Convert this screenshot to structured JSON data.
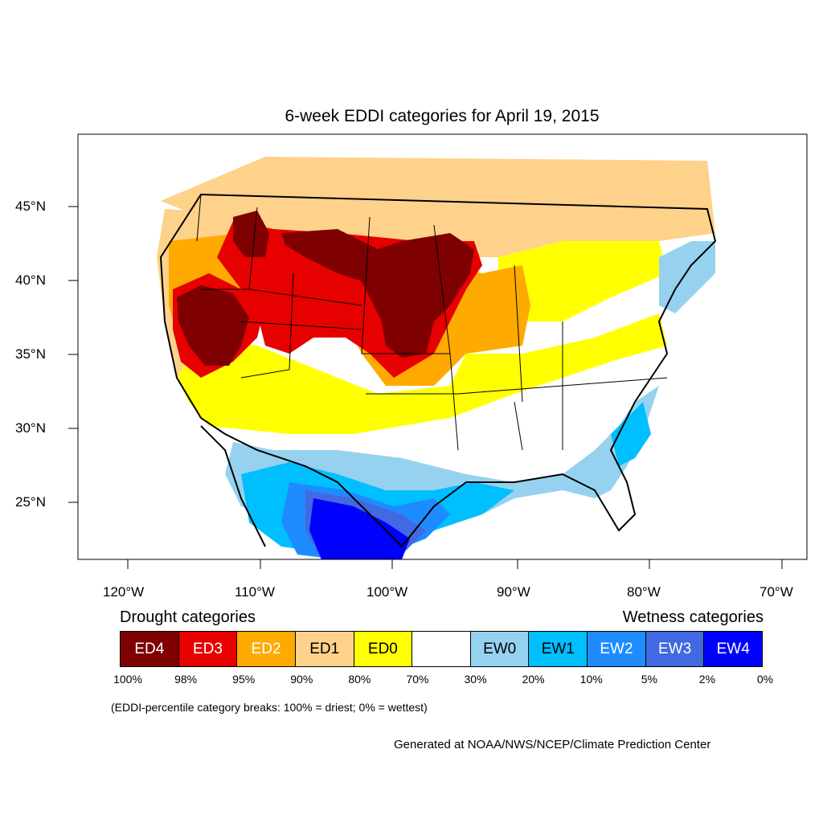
{
  "title": "6-week EDDI categories for April 19, 2015",
  "axes": {
    "lat_labels": [
      "45°N",
      "40°N",
      "35°N",
      "30°N",
      "25°N"
    ],
    "lon_labels": [
      "120°W",
      "110°W",
      "100°W",
      "90°W",
      "80°W",
      "70°W"
    ]
  },
  "legend": {
    "drought_title": "Drought categories",
    "wetness_title": "Wetness categories",
    "categories": [
      {
        "label": "ED4",
        "color": "#7f0000",
        "text_color": "#ffffff"
      },
      {
        "label": "ED3",
        "color": "#e60000",
        "text_color": "#ffffff"
      },
      {
        "label": "ED2",
        "color": "#ffaa00",
        "text_color": "#ffffff"
      },
      {
        "label": "ED1",
        "color": "#fed28a",
        "text_color": "#000000"
      },
      {
        "label": "ED0",
        "color": "#ffff00",
        "text_color": "#000000"
      },
      {
        "label": "",
        "color": "#ffffff",
        "text_color": "#000000"
      },
      {
        "label": "EW0",
        "color": "#96d2f0",
        "text_color": "#000000"
      },
      {
        "label": "EW1",
        "color": "#00bfff",
        "text_color": "#000000"
      },
      {
        "label": "EW2",
        "color": "#1e8cff",
        "text_color": "#ffffff"
      },
      {
        "label": "EW3",
        "color": "#4169e1",
        "text_color": "#ffffff"
      },
      {
        "label": "EW4",
        "color": "#0000ff",
        "text_color": "#ffffff"
      }
    ],
    "breaks": [
      "100%",
      "98%",
      "95%",
      "90%",
      "80%",
      "70%",
      "30%",
      "20%",
      "10%",
      "5%",
      "2%",
      "0%"
    ]
  },
  "note": "(EDDI-percentile category breaks: 100% = driest; 0% = wettest)",
  "credit": "Generated at NOAA/NWS/NCEP/Climate Prediction Center"
}
